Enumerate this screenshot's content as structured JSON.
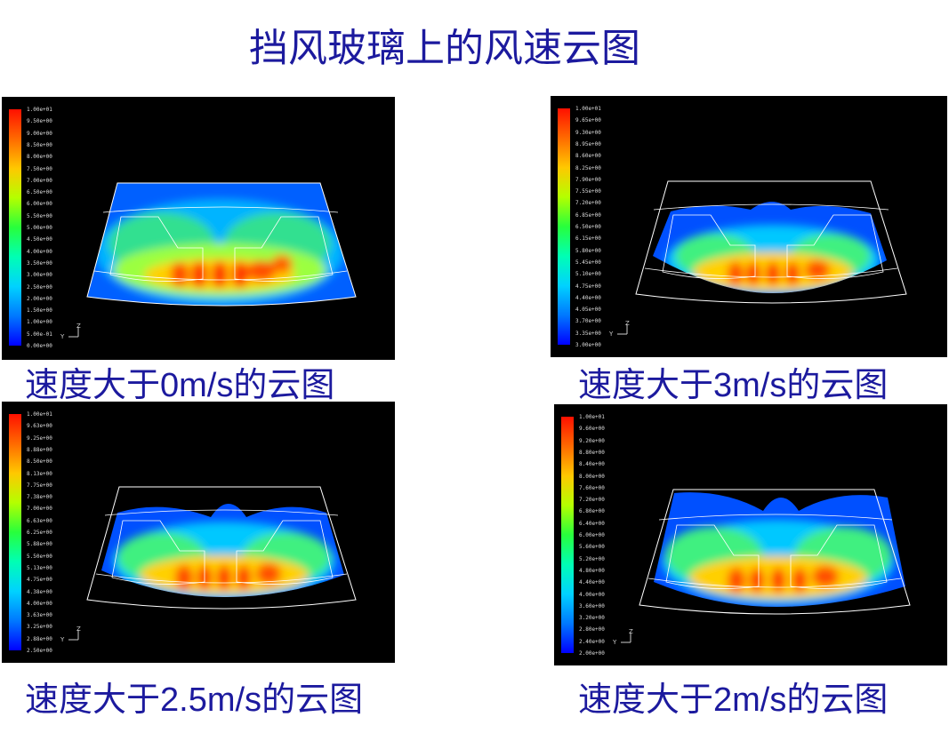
{
  "title": "挡风玻璃上的风速云图",
  "panels": [
    {
      "caption_prefix": "速度大于",
      "caption_value": "0m/s",
      "caption_suffix": "的云图",
      "ticks": [
        "1.00e+01",
        "9.50e+00",
        "9.00e+00",
        "8.50e+00",
        "8.00e+00",
        "7.50e+00",
        "7.00e+00",
        "6.50e+00",
        "6.00e+00",
        "5.50e+00",
        "5.00e+00",
        "4.50e+00",
        "4.00e+00",
        "3.50e+00",
        "3.00e+00",
        "2.50e+00",
        "2.00e+00",
        "1.50e+00",
        "1.00e+00",
        "5.00e-01",
        "0.00e+00"
      ],
      "axis_x": "Y",
      "axis_y": "Z"
    },
    {
      "caption_prefix": "速度大于",
      "caption_value": "3m/s",
      "caption_suffix": "的云图",
      "ticks": [
        "1.00e+01",
        "9.65e+00",
        "9.30e+00",
        "8.95e+00",
        "8.60e+00",
        "8.25e+00",
        "7.90e+00",
        "7.55e+00",
        "7.20e+00",
        "6.85e+00",
        "6.50e+00",
        "6.15e+00",
        "5.80e+00",
        "5.45e+00",
        "5.10e+00",
        "4.75e+00",
        "4.40e+00",
        "4.05e+00",
        "3.70e+00",
        "3.35e+00",
        "3.00e+00"
      ],
      "axis_x": "Y",
      "axis_y": "Z"
    },
    {
      "caption_prefix": "速度大于",
      "caption_value": "2.5m/s",
      "caption_suffix": "的云图",
      "ticks": [
        "1.00e+01",
        "9.63e+00",
        "9.25e+00",
        "8.88e+00",
        "8.50e+00",
        "8.13e+00",
        "7.75e+00",
        "7.38e+00",
        "7.00e+00",
        "6.63e+00",
        "6.25e+00",
        "5.88e+00",
        "5.50e+00",
        "5.13e+00",
        "4.75e+00",
        "4.38e+00",
        "4.00e+00",
        "3.63e+00",
        "3.25e+00",
        "2.88e+00",
        "2.50e+00"
      ],
      "axis_x": "Y",
      "axis_y": "Z"
    },
    {
      "caption_prefix": "速度大于",
      "caption_value": "2m/s",
      "caption_suffix": "的云图",
      "ticks": [
        "1.00e+01",
        "9.60e+00",
        "9.20e+00",
        "8.80e+00",
        "8.40e+00",
        "8.00e+00",
        "7.60e+00",
        "7.20e+00",
        "6.80e+00",
        "6.40e+00",
        "6.00e+00",
        "5.60e+00",
        "5.20e+00",
        "4.80e+00",
        "4.40e+00",
        "4.00e+00",
        "3.60e+00",
        "3.20e+00",
        "2.80e+00",
        "2.40e+00",
        "2.00e+00"
      ],
      "axis_x": "Y",
      "axis_y": "Z"
    }
  ],
  "colors": {
    "title": "#1c1a9e",
    "panel_bg": "#000000"
  }
}
